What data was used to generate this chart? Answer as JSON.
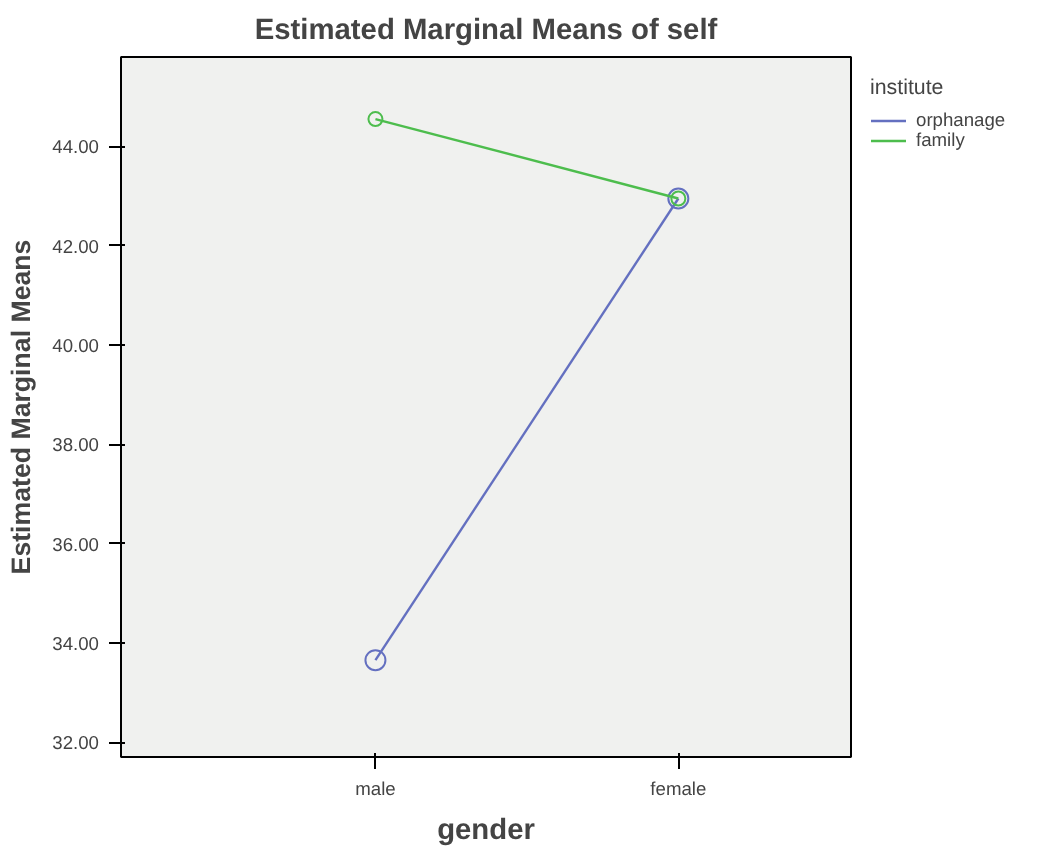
{
  "chart_data": {
    "type": "line",
    "title": "Estimated Marginal Means of self",
    "xlabel": "gender",
    "ylabel": "Estimated Marginal Means",
    "legend_title": "institute",
    "categories": [
      "male",
      "female"
    ],
    "series": [
      {
        "name": "orphanage",
        "color": "#6470c0",
        "values": [
          33.65,
          42.95
        ]
      },
      {
        "name": "family",
        "color": "#4dbd4d",
        "values": [
          44.55,
          42.95
        ]
      }
    ],
    "ylim": [
      31.7,
      45.8
    ],
    "yticks": [
      {
        "value": 32,
        "label": "32.00"
      },
      {
        "value": 34,
        "label": "34.00"
      },
      {
        "value": 36,
        "label": "36.00"
      },
      {
        "value": 38,
        "label": "38.00"
      },
      {
        "value": 40,
        "label": "40.00"
      },
      {
        "value": 42,
        "label": "42.00"
      },
      {
        "value": 44,
        "label": "44.00"
      }
    ],
    "grid": false,
    "legend": "top right",
    "marker": "circle",
    "line_style": "solid"
  }
}
